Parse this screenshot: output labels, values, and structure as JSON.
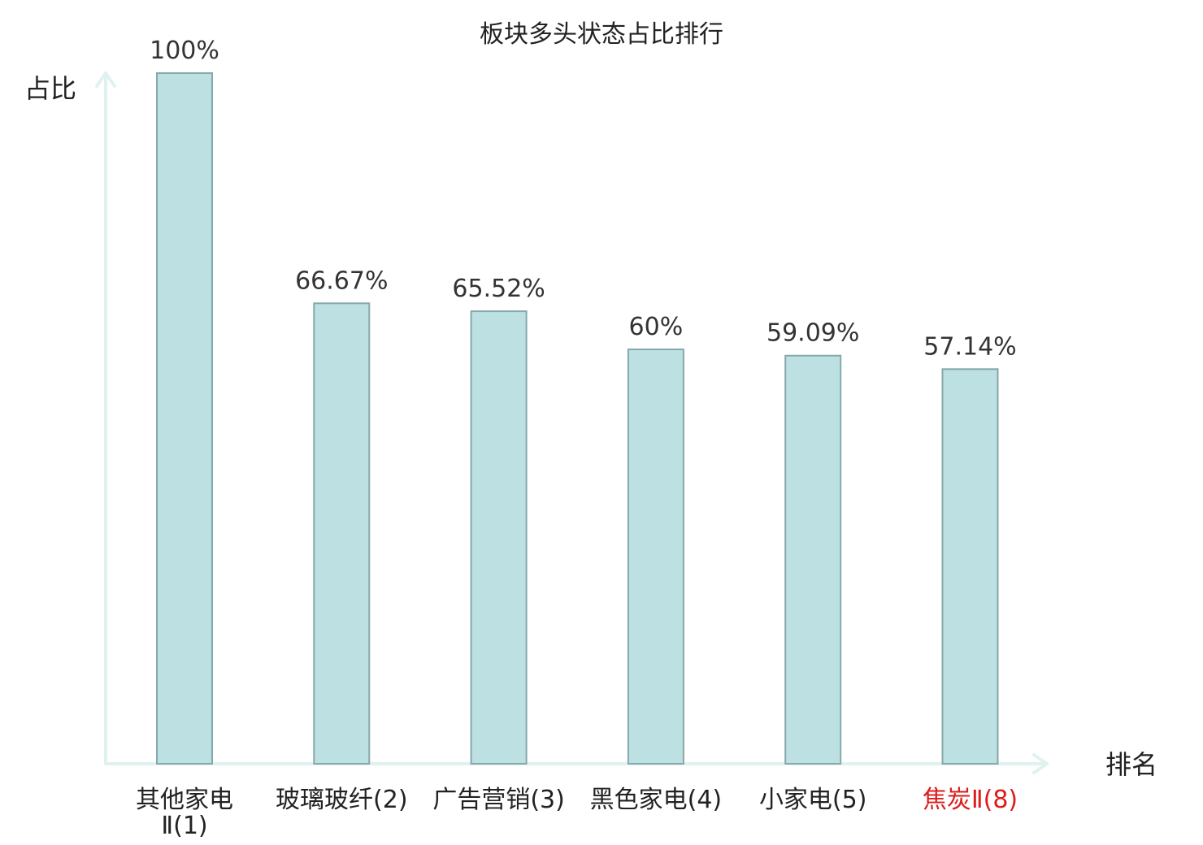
{
  "chart_data": {
    "type": "bar",
    "title": "板块多头状态占比排行",
    "ylabel": "占比",
    "xlabel": "排名",
    "ylim": [
      0,
      100
    ],
    "grid": false,
    "legend": "none",
    "categories": [
      {
        "name": "其他家电Ⅱ",
        "rank": "(1)",
        "highlight": false
      },
      {
        "name": "玻璃玻纤",
        "rank": "(2)",
        "highlight": false
      },
      {
        "name": "广告营销",
        "rank": "(3)",
        "highlight": false
      },
      {
        "name": "黑色家电",
        "rank": "(4)",
        "highlight": false
      },
      {
        "name": "小家电",
        "rank": "(5)",
        "highlight": false
      },
      {
        "name": "焦炭Ⅱ",
        "rank": "(8)",
        "highlight": true
      }
    ],
    "values": [
      100,
      66.67,
      65.52,
      60,
      59.09,
      57.14
    ],
    "value_labels": [
      "100%",
      "66.67%",
      "65.52%",
      "60%",
      "59.09%",
      "57.14%"
    ]
  },
  "colors": {
    "bar_fill": "#bde0e3",
    "bar_stroke": "#86a8ab",
    "axis": "#e0f2f0",
    "text": "#222222",
    "highlight": "#dd1b1b"
  }
}
